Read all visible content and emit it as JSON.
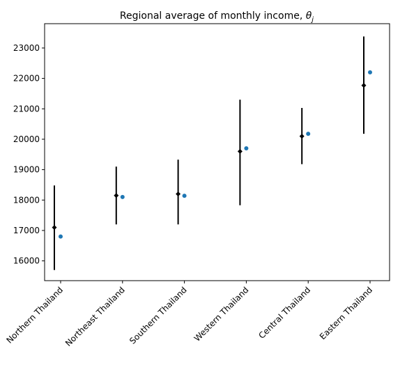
{
  "chart_data": {
    "type": "scatter",
    "title": "Regional average of monthly income, ",
    "title_symbol": "θ",
    "title_subscript": "j",
    "xlabel": "",
    "ylabel": "",
    "categories": [
      "Northern Thailand",
      "Northeast Thailand",
      "Southern Thailand",
      "Western Thailand",
      "Central Thailand",
      "Eastern Thailand"
    ],
    "ylim": [
      15350,
      23800
    ],
    "yticks": [
      16000,
      17000,
      18000,
      19000,
      20000,
      21000,
      22000,
      23000
    ],
    "grid": false,
    "series": [
      {
        "marker": "diamond",
        "color": "#000000",
        "values": [
          17100,
          18150,
          18200,
          19600,
          20100,
          21770
        ],
        "error_low": [
          15700,
          17200,
          17200,
          17830,
          19180,
          20180
        ],
        "error_high": [
          18480,
          19100,
          19330,
          21300,
          21030,
          23380
        ]
      },
      {
        "marker": "circle",
        "color": "#1f77b4",
        "values": [
          16800,
          18100,
          18140,
          19700,
          20180,
          22200
        ]
      }
    ]
  }
}
